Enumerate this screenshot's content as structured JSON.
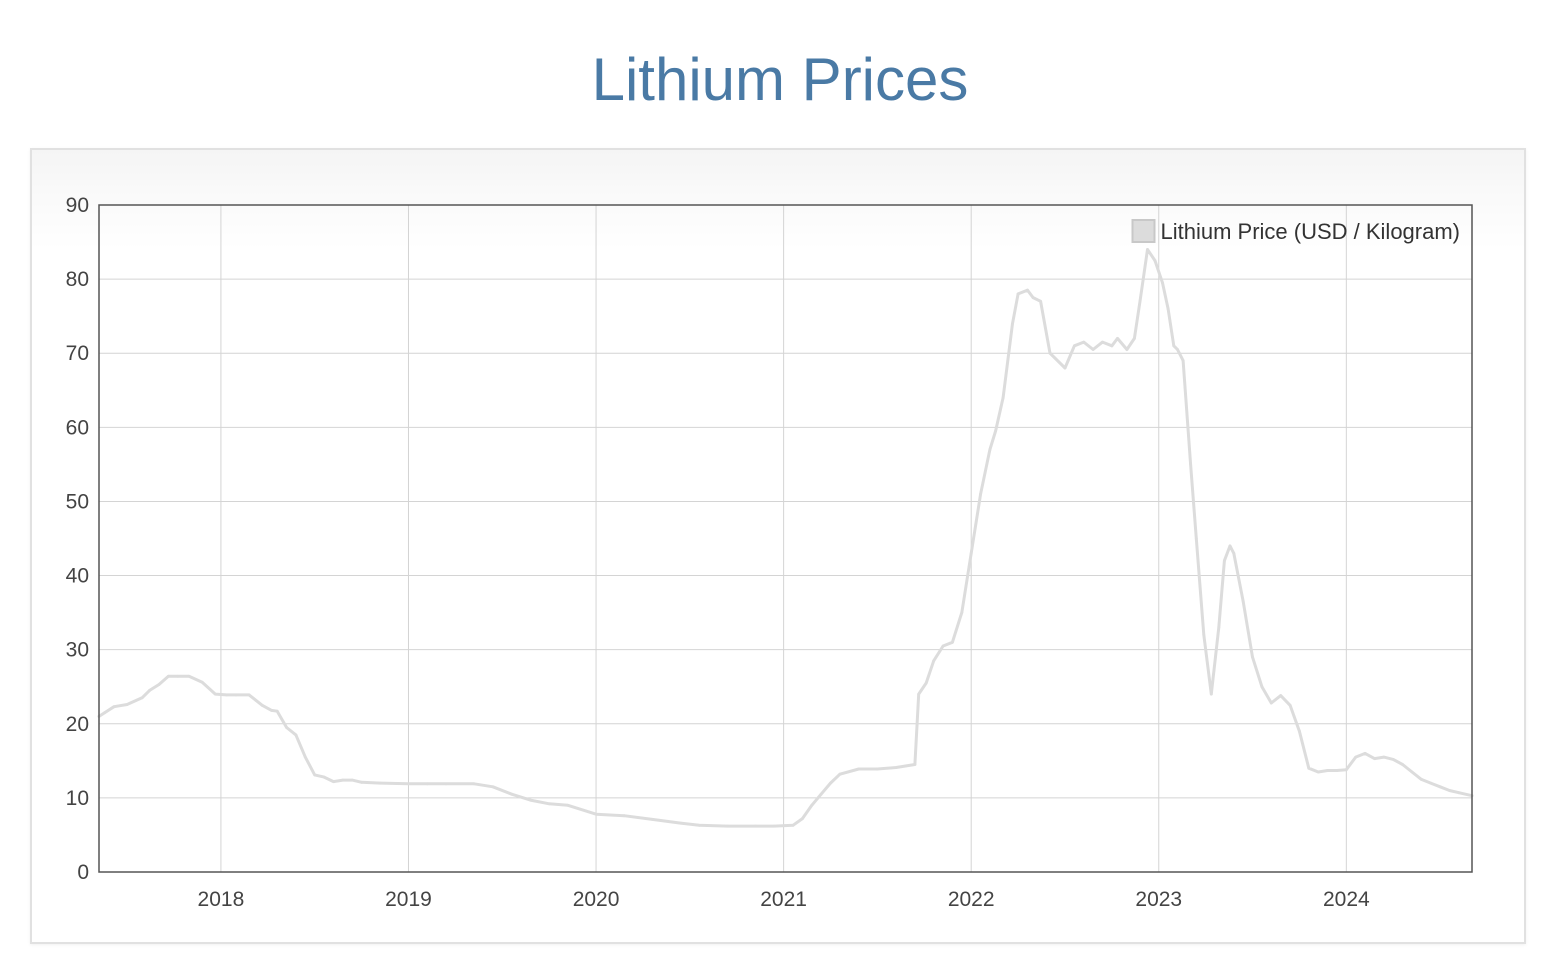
{
  "page": {
    "title": "Lithium Prices"
  },
  "chart_data": {
    "type": "line",
    "title": "Lithium Prices",
    "xlabel": "",
    "ylabel": "",
    "xlim": [
      2017.35,
      2024.67
    ],
    "ylim": [
      0,
      90
    ],
    "x_ticks": [
      2018,
      2019,
      2020,
      2021,
      2022,
      2023,
      2024
    ],
    "x_tick_labels": [
      "2018",
      "2019",
      "2020",
      "2021",
      "2022",
      "2023",
      "2024"
    ],
    "y_ticks": [
      0,
      10,
      20,
      30,
      40,
      50,
      60,
      70,
      80,
      90
    ],
    "y_tick_labels": [
      "0",
      "10",
      "20",
      "30",
      "40",
      "50",
      "60",
      "70",
      "80",
      "90"
    ],
    "grid": true,
    "legend_position": "top-right",
    "series": [
      {
        "name": "Lithium Price (USD / Kilogram)",
        "color": "#dcdcdc",
        "x": [
          2017.35,
          2017.38,
          2017.43,
          2017.5,
          2017.58,
          2017.62,
          2017.67,
          2017.72,
          2017.77,
          2017.83,
          2017.9,
          2017.97,
          2018.03,
          2018.08,
          2018.15,
          2018.22,
          2018.27,
          2018.3,
          2018.35,
          2018.4,
          2018.45,
          2018.5,
          2018.55,
          2018.6,
          2018.65,
          2018.7,
          2018.75,
          2018.85,
          2019.0,
          2019.1,
          2019.2,
          2019.35,
          2019.45,
          2019.55,
          2019.65,
          2019.75,
          2019.85,
          2020.0,
          2020.15,
          2020.3,
          2020.45,
          2020.55,
          2020.7,
          2020.85,
          2020.95,
          2021.05,
          2021.1,
          2021.15,
          2021.2,
          2021.25,
          2021.3,
          2021.4,
          2021.5,
          2021.6,
          2021.65,
          2021.7,
          2021.72,
          2021.76,
          2021.8,
          2021.85,
          2021.9,
          2021.95,
          2022.0,
          2022.05,
          2022.1,
          2022.13,
          2022.17,
          2022.22,
          2022.25,
          2022.3,
          2022.33,
          2022.37,
          2022.42,
          2022.5,
          2022.55,
          2022.6,
          2022.65,
          2022.7,
          2022.75,
          2022.78,
          2022.83,
          2022.87,
          2022.9,
          2022.94,
          2022.98,
          2023.02,
          2023.05,
          2023.08,
          2023.1,
          2023.13,
          2023.17,
          2023.2,
          2023.24,
          2023.28,
          2023.32,
          2023.35,
          2023.38,
          2023.4,
          2023.45,
          2023.5,
          2023.55,
          2023.6,
          2023.65,
          2023.7,
          2023.75,
          2023.8,
          2023.85,
          2023.9,
          2023.95,
          2024.0,
          2024.05,
          2024.1,
          2024.15,
          2024.2,
          2024.25,
          2024.3,
          2024.35,
          2024.4,
          2024.45,
          2024.5,
          2024.55,
          2024.6,
          2024.67
        ],
        "y": [
          21.0,
          21.5,
          22.3,
          22.6,
          23.5,
          24.5,
          25.3,
          26.4,
          26.4,
          26.4,
          25.6,
          24.0,
          23.9,
          23.9,
          23.9,
          22.5,
          21.8,
          21.7,
          19.5,
          18.5,
          15.5,
          13.1,
          12.8,
          12.2,
          12.4,
          12.4,
          12.1,
          12.0,
          11.9,
          11.9,
          11.9,
          11.9,
          11.5,
          10.5,
          9.7,
          9.2,
          9.0,
          7.8,
          7.6,
          7.1,
          6.6,
          6.3,
          6.2,
          6.2,
          6.2,
          6.3,
          7.2,
          9.0,
          10.5,
          12.0,
          13.2,
          13.9,
          13.9,
          14.1,
          14.3,
          14.5,
          24.0,
          25.5,
          28.5,
          30.5,
          31.0,
          35.0,
          43.0,
          51.0,
          57.0,
          59.5,
          64.0,
          74.0,
          78.0,
          78.5,
          77.5,
          77.0,
          70.0,
          68.0,
          71.0,
          71.5,
          70.5,
          71.5,
          71.0,
          72.0,
          70.5,
          72.0,
          77.0,
          84.0,
          82.5,
          79.5,
          76.0,
          71.0,
          70.5,
          69.0,
          55.0,
          45.0,
          32.0,
          24.0,
          33.0,
          42.0,
          44.0,
          43.0,
          36.5,
          29.0,
          25.0,
          22.8,
          23.8,
          22.5,
          19.0,
          14.0,
          13.5,
          13.7,
          13.7,
          13.8,
          15.5,
          16.0,
          15.3,
          15.5,
          15.2,
          14.5,
          13.5,
          12.5,
          12.0,
          11.5,
          11.0,
          10.7,
          10.3
        ]
      }
    ]
  }
}
